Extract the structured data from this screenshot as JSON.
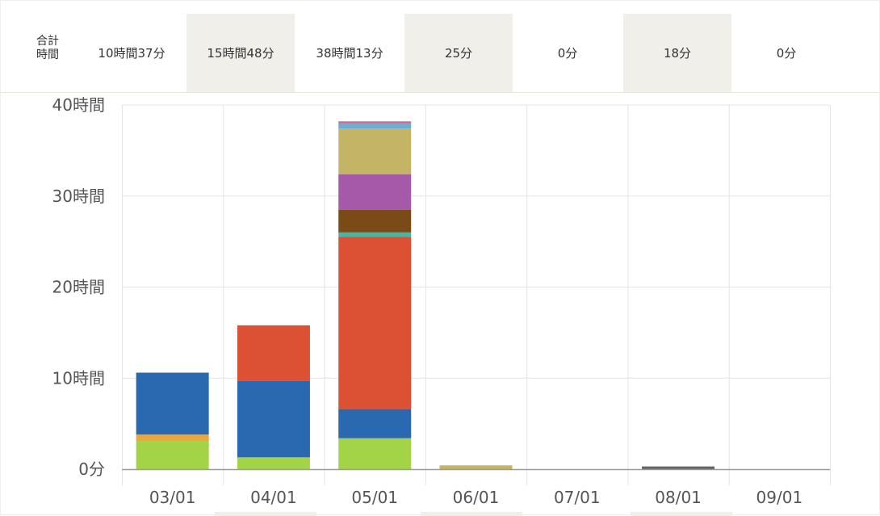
{
  "totals": {
    "label_line1": "合計",
    "label_line2": "時間",
    "cells": [
      "10時間37分",
      "15時間48分",
      "38時間13分",
      "25分",
      "0分",
      "18分",
      "0分"
    ]
  },
  "chart_data": {
    "type": "bar",
    "stacked": true,
    "categories": [
      "03/01",
      "04/01",
      "05/01",
      "06/01",
      "07/01",
      "08/01",
      "09/01"
    ],
    "ylim": [
      0,
      40
    ],
    "yticks": [
      0,
      10,
      20,
      30,
      40
    ],
    "ytick_labels": [
      "0分",
      "10時間",
      "20時間",
      "30時間",
      "40時間"
    ],
    "grid": true,
    "series": [
      {
        "color": "#a3d448",
        "values": [
          3.1,
          1.3,
          3.4,
          0,
          0,
          0,
          0
        ]
      },
      {
        "color": "#e8a83e",
        "values": [
          0.7,
          0,
          0,
          0,
          0,
          0,
          0
        ]
      },
      {
        "color": "#2a68b0",
        "values": [
          6.8,
          8.4,
          3.2,
          0,
          0,
          0,
          0
        ]
      },
      {
        "color": "#dc5034",
        "values": [
          0,
          6.1,
          18.9,
          0,
          0,
          0,
          0
        ]
      },
      {
        "color": "#4fb39e",
        "values": [
          0,
          0,
          0.5,
          0,
          0,
          0,
          0
        ]
      },
      {
        "color": "#7a4b17",
        "values": [
          0,
          0,
          2.5,
          0,
          0,
          0,
          0
        ]
      },
      {
        "color": "#a45aa8",
        "values": [
          0,
          0,
          3.9,
          0,
          0,
          0,
          0
        ]
      },
      {
        "color": "#c4b466",
        "values": [
          0,
          0,
          5.0,
          0.42,
          0,
          0,
          0
        ]
      },
      {
        "color": "#6aaed8",
        "values": [
          0,
          0,
          0.6,
          0,
          0,
          0,
          0
        ]
      },
      {
        "color": "#d4688c",
        "values": [
          0,
          0,
          0.2,
          0,
          0,
          0,
          0
        ]
      },
      {
        "color": "#666666",
        "values": [
          0,
          0,
          0,
          0,
          0,
          0.3,
          0
        ]
      }
    ]
  }
}
